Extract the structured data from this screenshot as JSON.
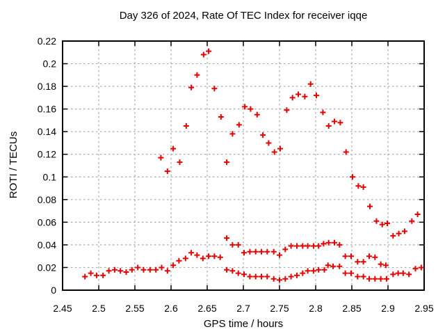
{
  "chart_data": {
    "type": "scatter",
    "title": "Day 326 of 2024, Rate Of TEC Index for receiver iqqe",
    "xlabel": "GPS time / hours",
    "ylabel": "ROTI / TECUs",
    "xlim": [
      2.45,
      2.95
    ],
    "ylim": [
      0,
      0.22
    ],
    "xtick_labels": [
      "2.45",
      "2.5",
      "2.55",
      "2.6",
      "2.65",
      "2.7",
      "2.75",
      "2.8",
      "2.85",
      "2.9",
      "2.95"
    ],
    "ytick_labels": [
      "0",
      "0.02",
      "0.04",
      "0.06",
      "0.08",
      "0.1",
      "0.12",
      "0.14",
      "0.16",
      "0.18",
      "0.2",
      "0.22"
    ],
    "grid": "dashed",
    "legend": "none",
    "marker": "plus",
    "points": [
      [
        2.481,
        0.012
      ],
      [
        2.489,
        0.015
      ],
      [
        2.497,
        0.013
      ],
      [
        2.506,
        0.013
      ],
      [
        2.514,
        0.017
      ],
      [
        2.522,
        0.018
      ],
      [
        2.53,
        0.017
      ],
      [
        2.538,
        0.016
      ],
      [
        2.546,
        0.018
      ],
      [
        2.554,
        0.02
      ],
      [
        2.562,
        0.018
      ],
      [
        2.571,
        0.018
      ],
      [
        2.579,
        0.018
      ],
      [
        2.587,
        0.02
      ],
      [
        2.595,
        0.017
      ],
      [
        2.603,
        0.022
      ],
      [
        2.611,
        0.026
      ],
      [
        2.62,
        0.028
      ],
      [
        2.628,
        0.033
      ],
      [
        2.636,
        0.031
      ],
      [
        2.644,
        0.028
      ],
      [
        2.652,
        0.03
      ],
      [
        2.66,
        0.03
      ],
      [
        2.668,
        0.029
      ],
      [
        2.586,
        0.117
      ],
      [
        2.595,
        0.105
      ],
      [
        2.603,
        0.125
      ],
      [
        2.612,
        0.113
      ],
      [
        2.621,
        0.145
      ],
      [
        2.628,
        0.179
      ],
      [
        2.636,
        0.19
      ],
      [
        2.645,
        0.208
      ],
      [
        2.652,
        0.211
      ],
      [
        2.66,
        0.178
      ],
      [
        2.669,
        0.153
      ],
      [
        2.677,
        0.113
      ],
      [
        2.685,
        0.138
      ],
      [
        2.694,
        0.146
      ],
      [
        2.702,
        0.162
      ],
      [
        2.71,
        0.16
      ],
      [
        2.719,
        0.155
      ],
      [
        2.727,
        0.137
      ],
      [
        2.735,
        0.13
      ],
      [
        2.743,
        0.122
      ],
      [
        2.751,
        0.125
      ],
      [
        2.76,
        0.159
      ],
      [
        2.768,
        0.17
      ],
      [
        2.776,
        0.173
      ],
      [
        2.785,
        0.171
      ],
      [
        2.793,
        0.182
      ],
      [
        2.801,
        0.172
      ],
      [
        2.81,
        0.157
      ],
      [
        2.818,
        0.145
      ],
      [
        2.826,
        0.149
      ],
      [
        2.834,
        0.148
      ],
      [
        2.842,
        0.122
      ],
      [
        2.851,
        0.1
      ],
      [
        2.859,
        0.092
      ],
      [
        2.866,
        0.091
      ],
      [
        2.875,
        0.074
      ],
      [
        2.884,
        0.061
      ],
      [
        2.892,
        0.058
      ],
      [
        2.899,
        0.059
      ],
      [
        2.907,
        0.048
      ],
      [
        2.915,
        0.05
      ],
      [
        2.923,
        0.052
      ],
      [
        2.933,
        0.061
      ],
      [
        2.941,
        0.067
      ],
      [
        2.677,
        0.046
      ],
      [
        2.685,
        0.04
      ],
      [
        2.693,
        0.04
      ],
      [
        2.701,
        0.033
      ],
      [
        2.709,
        0.034
      ],
      [
        2.717,
        0.034
      ],
      [
        2.725,
        0.034
      ],
      [
        2.733,
        0.034
      ],
      [
        2.742,
        0.034
      ],
      [
        2.75,
        0.031
      ],
      [
        2.758,
        0.036
      ],
      [
        2.766,
        0.039
      ],
      [
        2.774,
        0.039
      ],
      [
        2.782,
        0.039
      ],
      [
        2.789,
        0.039
      ],
      [
        2.797,
        0.039
      ],
      [
        2.804,
        0.039
      ],
      [
        2.811,
        0.041
      ],
      [
        2.818,
        0.042
      ],
      [
        2.826,
        0.042
      ],
      [
        2.833,
        0.04
      ],
      [
        2.841,
        0.03
      ],
      [
        2.849,
        0.03
      ],
      [
        2.858,
        0.025
      ],
      [
        2.866,
        0.025
      ],
      [
        2.874,
        0.03
      ],
      [
        2.882,
        0.029
      ],
      [
        2.89,
        0.023
      ],
      [
        2.897,
        0.022
      ],
      [
        2.677,
        0.018
      ],
      [
        2.685,
        0.017
      ],
      [
        2.693,
        0.015
      ],
      [
        2.701,
        0.014
      ],
      [
        2.709,
        0.012
      ],
      [
        2.717,
        0.012
      ],
      [
        2.725,
        0.012
      ],
      [
        2.733,
        0.012
      ],
      [
        2.742,
        0.01
      ],
      [
        2.75,
        0.009
      ],
      [
        2.758,
        0.01
      ],
      [
        2.766,
        0.012
      ],
      [
        2.774,
        0.013
      ],
      [
        2.782,
        0.015
      ],
      [
        2.789,
        0.017
      ],
      [
        2.797,
        0.017
      ],
      [
        2.804,
        0.018
      ],
      [
        2.812,
        0.018
      ],
      [
        2.817,
        0.022
      ],
      [
        2.824,
        0.021
      ],
      [
        2.833,
        0.021
      ],
      [
        2.841,
        0.015
      ],
      [
        2.849,
        0.015
      ],
      [
        2.858,
        0.012
      ],
      [
        2.866,
        0.012
      ],
      [
        2.874,
        0.01
      ],
      [
        2.882,
        0.01
      ],
      [
        2.89,
        0.01
      ],
      [
        2.898,
        0.01
      ],
      [
        2.907,
        0.014
      ],
      [
        2.914,
        0.015
      ],
      [
        2.921,
        0.015
      ],
      [
        2.929,
        0.014
      ],
      [
        2.938,
        0.019
      ],
      [
        2.946,
        0.02
      ]
    ]
  },
  "colors": {
    "marker": "#e60000",
    "grid": "#a8a8a8",
    "axis": "#000000",
    "background": "#ffffff",
    "text": "#000000"
  }
}
